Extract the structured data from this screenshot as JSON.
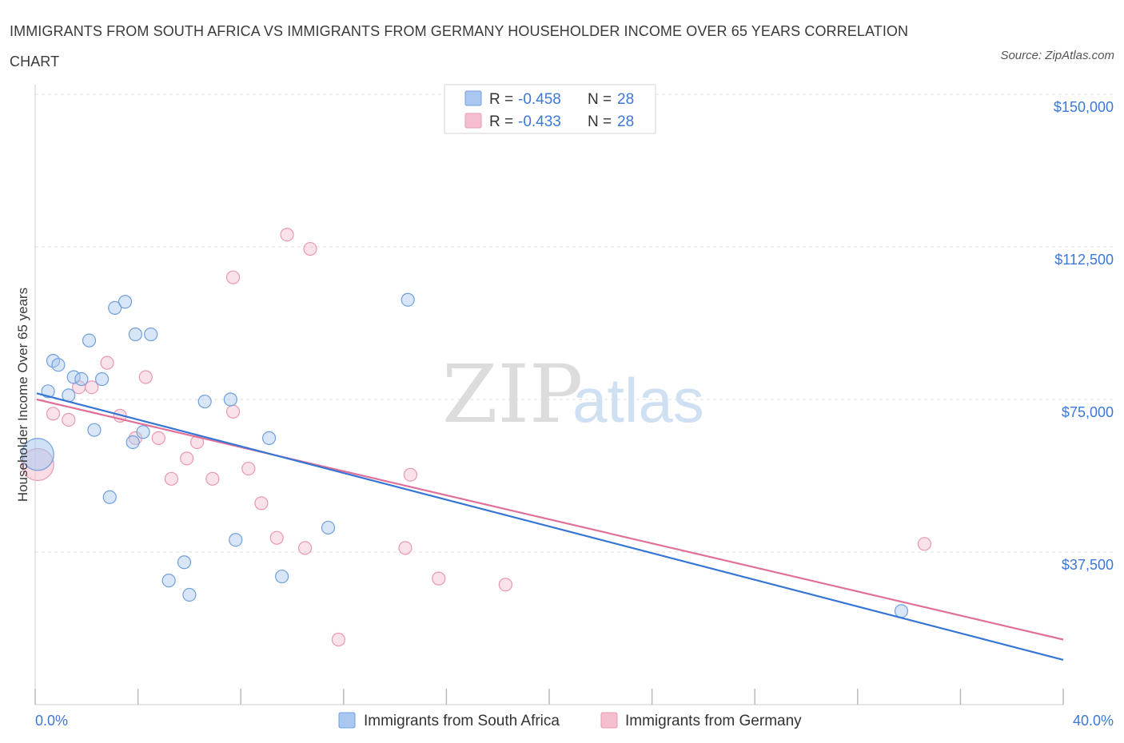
{
  "title": "IMMIGRANTS FROM SOUTH AFRICA VS IMMIGRANTS FROM GERMANY HOUSEHOLDER INCOME OVER 65 YEARS CORRELATION CHART",
  "source": "Source: ZipAtlas.com",
  "watermark": {
    "zip": "ZIP",
    "atlas": "atlas"
  },
  "legend": {
    "rows": [
      {
        "r_label": "R =",
        "r_value": "-0.458",
        "n_label": "N =",
        "n_value": "28"
      },
      {
        "r_label": "R =",
        "r_value": "-0.433",
        "n_label": "N =",
        "n_value": "28"
      }
    ]
  },
  "colors": {
    "blue_fill": "#aac8ef",
    "blue_stroke": "#6fa0dc",
    "blue_line": "#3575d3",
    "pink_fill": "#f5bfd0",
    "pink_stroke": "#e898b2",
    "pink_line": "#e0709a",
    "grid": "#dddddd",
    "axis_label": "#3c78d8"
  },
  "chart_data": {
    "type": "scatter",
    "title": "IMMIGRANTS FROM SOUTH AFRICA VS IMMIGRANTS FROM GERMANY HOUSEHOLDER INCOME OVER 65 YEARS CORRELATION CHART",
    "xlabel": "",
    "ylabel": "Householder Income Over 65 years",
    "xlim": [
      0,
      40
    ],
    "ylim": [
      0,
      150000
    ],
    "x_tick_labels": [
      "0.0%",
      "40.0%"
    ],
    "y_ticks": [
      37500,
      75000,
      112500,
      150000
    ],
    "y_tick_labels": [
      "$37,500",
      "$75,000",
      "$112,500",
      "$150,000"
    ],
    "grid": true,
    "legend_position": "top-center",
    "series": [
      {
        "name": "Immigrants from South Africa",
        "points": [
          {
            "x": 0.1,
            "y": 61500,
            "big": true
          },
          {
            "x": 0.5,
            "y": 77000
          },
          {
            "x": 0.7,
            "y": 84500
          },
          {
            "x": 0.9,
            "y": 83500
          },
          {
            "x": 1.3,
            "y": 76000
          },
          {
            "x": 1.5,
            "y": 80500
          },
          {
            "x": 1.8,
            "y": 80000
          },
          {
            "x": 2.1,
            "y": 89500
          },
          {
            "x": 2.3,
            "y": 67500
          },
          {
            "x": 2.6,
            "y": 80000
          },
          {
            "x": 2.9,
            "y": 51000
          },
          {
            "x": 3.1,
            "y": 97500
          },
          {
            "x": 3.5,
            "y": 99000
          },
          {
            "x": 3.8,
            "y": 64500
          },
          {
            "x": 3.9,
            "y": 91000
          },
          {
            "x": 4.2,
            "y": 67000
          },
          {
            "x": 4.5,
            "y": 91000
          },
          {
            "x": 5.2,
            "y": 30500
          },
          {
            "x": 5.8,
            "y": 35000
          },
          {
            "x": 6.0,
            "y": 27000
          },
          {
            "x": 6.6,
            "y": 74500
          },
          {
            "x": 7.6,
            "y": 75000
          },
          {
            "x": 7.8,
            "y": 40500
          },
          {
            "x": 9.1,
            "y": 65500
          },
          {
            "x": 9.6,
            "y": 31500
          },
          {
            "x": 11.4,
            "y": 43500
          },
          {
            "x": 14.5,
            "y": 99500
          },
          {
            "x": 33.7,
            "y": 23000
          }
        ],
        "trend": {
          "x": [
            0,
            40
          ],
          "y": [
            76500,
            11000
          ]
        }
      },
      {
        "name": "Immigrants from Germany",
        "points": [
          {
            "x": 0.1,
            "y": 59000,
            "big": true
          },
          {
            "x": 0.7,
            "y": 71500
          },
          {
            "x": 1.3,
            "y": 70000
          },
          {
            "x": 1.7,
            "y": 78000
          },
          {
            "x": 2.2,
            "y": 78000
          },
          {
            "x": 2.8,
            "y": 84000
          },
          {
            "x": 3.3,
            "y": 71000
          },
          {
            "x": 3.9,
            "y": 65500
          },
          {
            "x": 4.3,
            "y": 80500
          },
          {
            "x": 4.8,
            "y": 65500
          },
          {
            "x": 5.3,
            "y": 55500
          },
          {
            "x": 5.9,
            "y": 60500
          },
          {
            "x": 6.3,
            "y": 64500
          },
          {
            "x": 6.9,
            "y": 55500
          },
          {
            "x": 7.7,
            "y": 105000
          },
          {
            "x": 7.7,
            "y": 72000
          },
          {
            "x": 8.3,
            "y": 58000
          },
          {
            "x": 8.8,
            "y": 49500
          },
          {
            "x": 9.4,
            "y": 41000
          },
          {
            "x": 9.8,
            "y": 115500
          },
          {
            "x": 10.5,
            "y": 38500
          },
          {
            "x": 10.7,
            "y": 112000
          },
          {
            "x": 11.8,
            "y": 16000
          },
          {
            "x": 14.4,
            "y": 38500
          },
          {
            "x": 14.6,
            "y": 56500
          },
          {
            "x": 15.7,
            "y": 31000
          },
          {
            "x": 18.3,
            "y": 29500
          },
          {
            "x": 34.6,
            "y": 39500
          }
        ],
        "trend": {
          "x": [
            0,
            40
          ],
          "y": [
            75000,
            16000
          ]
        }
      }
    ]
  }
}
